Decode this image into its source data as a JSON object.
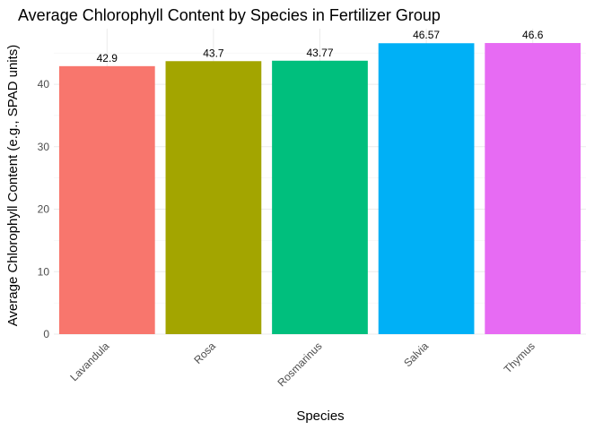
{
  "chart_data": {
    "type": "bar",
    "title": "Average Chlorophyll Content by Species in Fertilizer Group",
    "xlabel": "Species",
    "ylabel": "Average Chlorophyll Content (e.g., SPAD units)",
    "categories": [
      "Lavandula",
      "Rosa",
      "Rosmarinus",
      "Salvia",
      "Thymus"
    ],
    "values": [
      42.9,
      43.7,
      43.77,
      46.57,
      46.6
    ],
    "data_labels": [
      "42.9",
      "43.7",
      "43.77",
      "46.57",
      "46.6"
    ],
    "colors": [
      "#F8766D",
      "#A3A500",
      "#00BF7D",
      "#00B0F6",
      "#E76BF3"
    ],
    "ylim": [
      0,
      48.9
    ],
    "yticks": [
      0,
      10,
      20,
      30,
      40
    ],
    "ytick_labels": [
      "0",
      "10",
      "20",
      "30",
      "40"
    ],
    "grid": true,
    "legend": "none"
  }
}
